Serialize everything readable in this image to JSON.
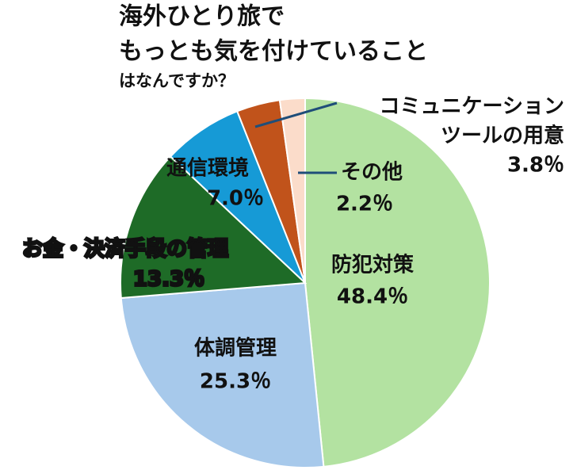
{
  "chart_data": {
    "type": "pie",
    "title": [
      "海外ひとり旅で",
      "もっとも気を付けていること",
      "はなんですか？"
    ],
    "categories": [
      [
        "防犯対策"
      ],
      [
        "体調管理"
      ],
      [
        "お金・決済手段の管理"
      ],
      [
        "通信環境"
      ],
      [
        "コミュニケーション",
        "ツールの用意"
      ],
      [
        "その他"
      ]
    ],
    "values": [
      48.4,
      25.3,
      13.3,
      7.0,
      3.8,
      2.2
    ],
    "value_labels": [
      "48.4％",
      "25.3％",
      "13.3％",
      "7.0％",
      "3.8％",
      "2.2％"
    ],
    "colors": [
      "#b3e2a1",
      "#a7c9eb",
      "#1e6b27",
      "#169ad6",
      "#c1531b",
      "#fbdcca"
    ]
  }
}
